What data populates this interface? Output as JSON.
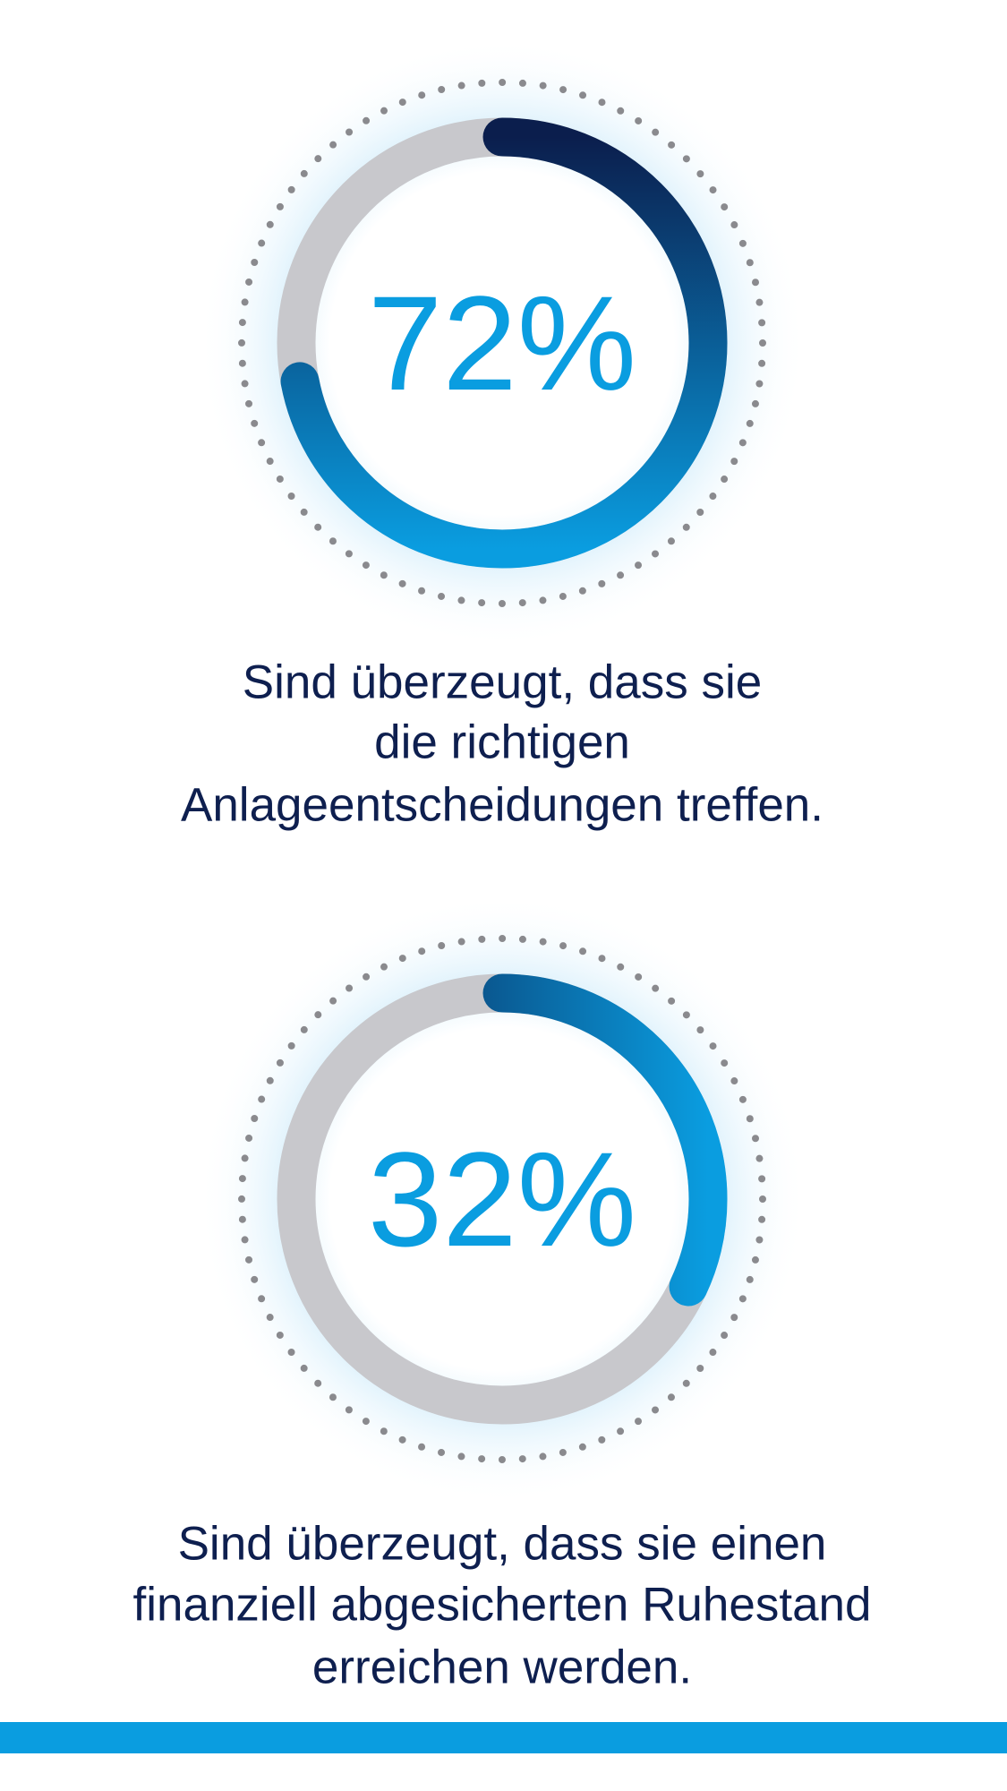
{
  "chart_data": [
    {
      "type": "gauge",
      "values": [
        72
      ],
      "value_labels": [
        "72%"
      ],
      "ylim": [
        0,
        100
      ],
      "colors": [
        "#0a9de0",
        "#0b1e4d"
      ],
      "track_color": "#c8c8cc",
      "caption": [
        "Sind überzeugt, dass sie",
        "die richtigen",
        "Anlageentscheidungen treffen."
      ]
    },
    {
      "type": "gauge",
      "values": [
        32
      ],
      "value_labels": [
        "32%"
      ],
      "ylim": [
        0,
        100
      ],
      "colors": [
        "#0b1e4d",
        "#0a9de0"
      ],
      "track_color": "#c8c8cc",
      "caption": [
        "Sind überzeugt, dass sie einen",
        "finanziell abgesicherten Ruhestand",
        "erreichen werden."
      ]
    }
  ]
}
